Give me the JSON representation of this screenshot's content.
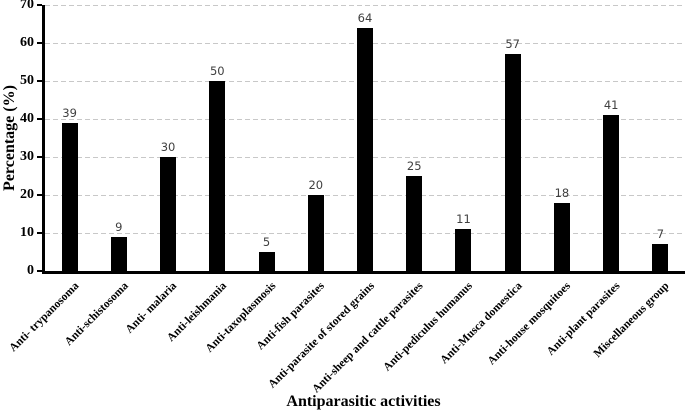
{
  "chart_data": {
    "type": "bar",
    "title": "",
    "xlabel": "Antiparasitic activities",
    "ylabel": "Percentage (%)",
    "categories": [
      "Anti- trypanosoma",
      "Anti-schistosoma",
      "Anti- malaria",
      "Anti-leishmania",
      "Anti-taxoplasmosis",
      "Anti-fish parasites",
      "Anti-parasite of stored grains",
      "Anti-sheep and cattle parasites",
      "Anti-pediculus humanus",
      "Anti-Musca domestica",
      "Anti-house mosquitoes",
      "Anti-plant parasites",
      "Miscellaneous group"
    ],
    "values": [
      39,
      9,
      30,
      50,
      5,
      20,
      64,
      25,
      11,
      57,
      18,
      41,
      7
    ],
    "ylim": [
      0,
      70
    ],
    "yticks": [
      0,
      10,
      20,
      30,
      40,
      50,
      60,
      70
    ],
    "grid": "horizontal-dashed",
    "legend": "none",
    "bar_labels_shown": true,
    "colors": {
      "bar": "#000000",
      "axis": "#000000",
      "gridline": "#c8c8c8",
      "value_label": "#404040",
      "tick_label": "#000000"
    }
  }
}
